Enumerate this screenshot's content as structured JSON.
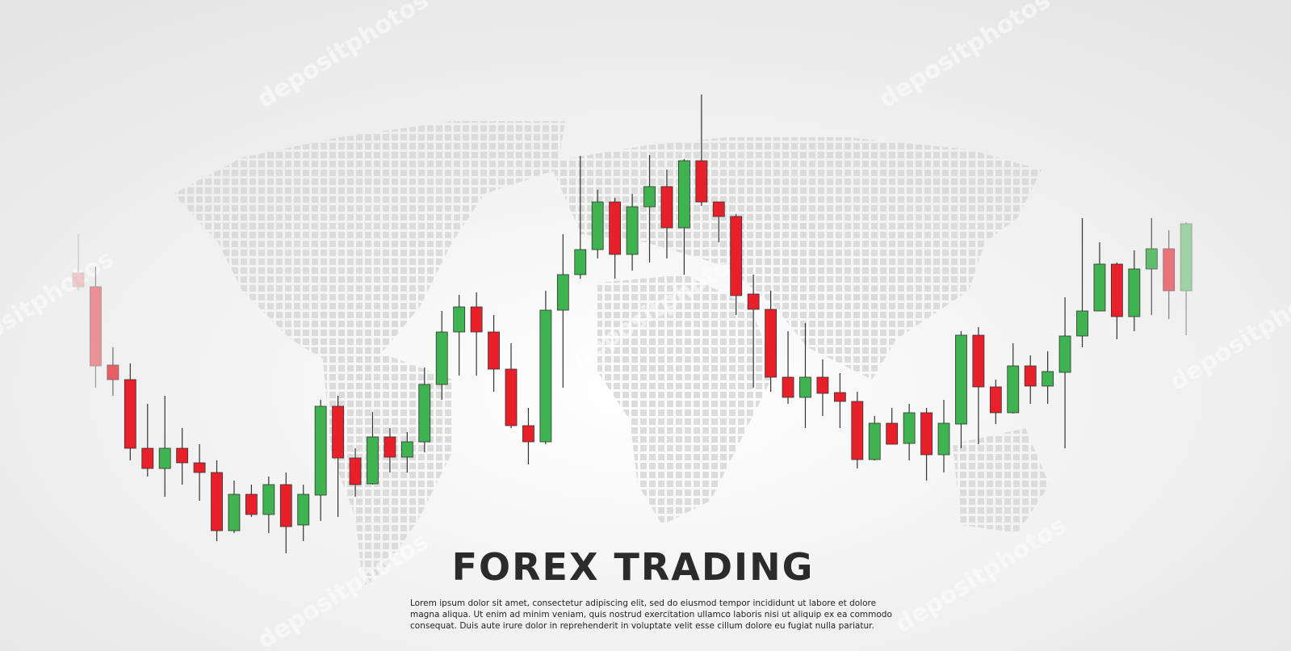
{
  "chart_data": {
    "type": "candlestick",
    "title": "FOREX TRADING",
    "description": [
      "Lorem ipsum dolor sit amet, consectetur adipiscing elit, sed do eiusmod tempor incididunt ut labore et dolore",
      "magna aliqua. Ut enim ad minim veniam, quis nostrud exercitation ullamco laboris nisi ut aliquip ex ea commodo",
      "consequat. Duis aute irure dolor in reprehenderit in voluptate velit esse cillum dolore eu fugiat nulla pariatur."
    ],
    "watermark": "depositphotos",
    "up_color": "#3fb350",
    "down_color": "#e8202a",
    "ylim": [
      0,
      800
    ],
    "open": [
      462,
      445,
      348,
      330,
      245,
      220,
      245,
      227,
      215,
      143,
      188,
      163,
      200,
      150,
      187,
      297,
      233,
      201,
      259,
      234,
      253,
      324,
      389,
      420,
      389,
      343,
      273,
      253,
      416,
      460,
      491,
      550,
      485,
      544,
      569,
      518,
      601,
      550,
      532,
      436,
      417,
      333,
      308,
      333,
      314,
      303,
      231,
      276,
      251,
      289,
      237,
      275,
      385,
      321,
      289,
      347,
      322,
      339,
      384,
      415,
      473,
      408,
      467,
      492,
      440
    ],
    "high": [
      510,
      470,
      370,
      350,
      300,
      310,
      270,
      250,
      230,
      205,
      200,
      210,
      215,
      200,
      305,
      310,
      245,
      290,
      270,
      265,
      345,
      415,
      435,
      438,
      410,
      375,
      295,
      440,
      510,
      607,
      565,
      555,
      560,
      608,
      590,
      603,
      683,
      550,
      535,
      460,
      440,
      390,
      400,
      355,
      338,
      315,
      285,
      295,
      300,
      295,
      305,
      390,
      395,
      330,
      375,
      360,
      365,
      432,
      530,
      500,
      475,
      490,
      530,
      515,
      525
    ],
    "low": [
      440,
      320,
      310,
      230,
      210,
      185,
      200,
      180,
      130,
      140,
      160,
      140,
      115,
      130,
      155,
      160,
      185,
      200,
      215,
      215,
      240,
      305,
      335,
      335,
      315,
      270,
      225,
      250,
      320,
      455,
      480,
      455,
      465,
      475,
      480,
      460,
      545,
      500,
      410,
      320,
      315,
      300,
      270,
      285,
      270,
      220,
      230,
      250,
      230,
      205,
      215,
      245,
      250,
      275,
      288,
      300,
      300,
      245,
      370,
      415,
      380,
      390,
      410,
      405,
      385
    ],
    "close": [
      445,
      347,
      330,
      245,
      220,
      245,
      227,
      215,
      143,
      188,
      163,
      200,
      148,
      188,
      297,
      233,
      200,
      259,
      234,
      253,
      324,
      389,
      420,
      389,
      343,
      273,
      253,
      416,
      460,
      491,
      550,
      485,
      544,
      569,
      518,
      601,
      550,
      532,
      434,
      417,
      333,
      308,
      333,
      313,
      303,
      231,
      276,
      250,
      289,
      237,
      276,
      385,
      321,
      289,
      347,
      322,
      340,
      384,
      415,
      473,
      408,
      467,
      492,
      440,
      523
    ]
  }
}
